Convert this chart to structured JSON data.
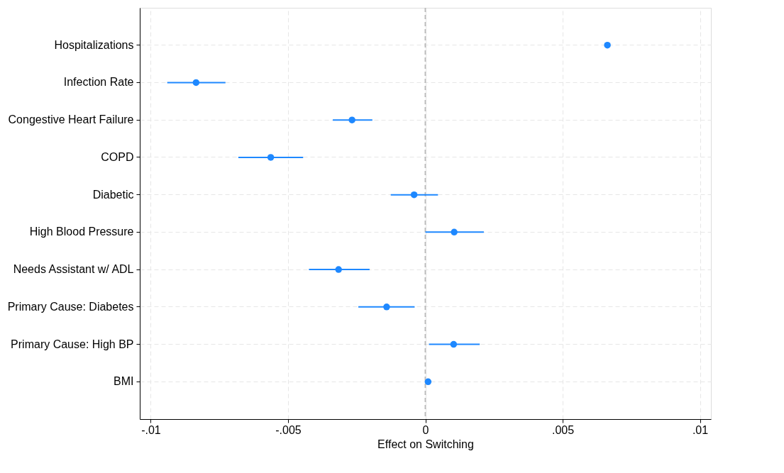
{
  "chart_data": {
    "type": "scatter",
    "xlabel": "Effect on Switching",
    "orientation": "horizontal",
    "categories": [
      "Hospitalizations",
      "Infection Rate",
      "Congestive Heart Failure",
      "COPD",
      "Diabetic",
      "High Blood Pressure",
      "Needs Assistant w/ ADL",
      "Primary Cause: Diabetes",
      "Primary Cause: High BP",
      "BMI"
    ],
    "series": [
      {
        "color": "#1e88ff",
        "values": [
          0.00663,
          -0.00835,
          -0.00267,
          -0.00563,
          -0.00041,
          0.00105,
          -0.00316,
          -0.00141,
          0.00103,
          0.0001
        ],
        "errors": [
          [
            0.00653,
            0.00673
          ],
          [
            -0.0094,
            -0.00728
          ],
          [
            -0.00337,
            -0.00193
          ],
          [
            -0.00681,
            -0.00445
          ],
          [
            -0.00126,
            0.00046
          ],
          [
            0.0,
            0.00213
          ],
          [
            -0.00424,
            -0.00203
          ],
          [
            -0.00244,
            -0.00039
          ],
          [
            0.00013,
            0.00198
          ],
          [
            5e-05,
            0.00015
          ]
        ]
      }
    ],
    "xlim": [
      -0.0104,
      0.0104
    ],
    "xticks": [
      {
        "value": -0.01,
        "label": "-.01"
      },
      {
        "value": -0.005,
        "label": "-.005"
      },
      {
        "value": 0,
        "label": "0"
      },
      {
        "value": 0.005,
        "label": ".005"
      },
      {
        "value": 0.01,
        "label": ".01"
      }
    ],
    "ref_lines": [
      {
        "axis": "x",
        "value": 0,
        "color": "#bbbbbb",
        "line_style": "dashed"
      }
    ],
    "grid": true,
    "marker": "circle"
  }
}
